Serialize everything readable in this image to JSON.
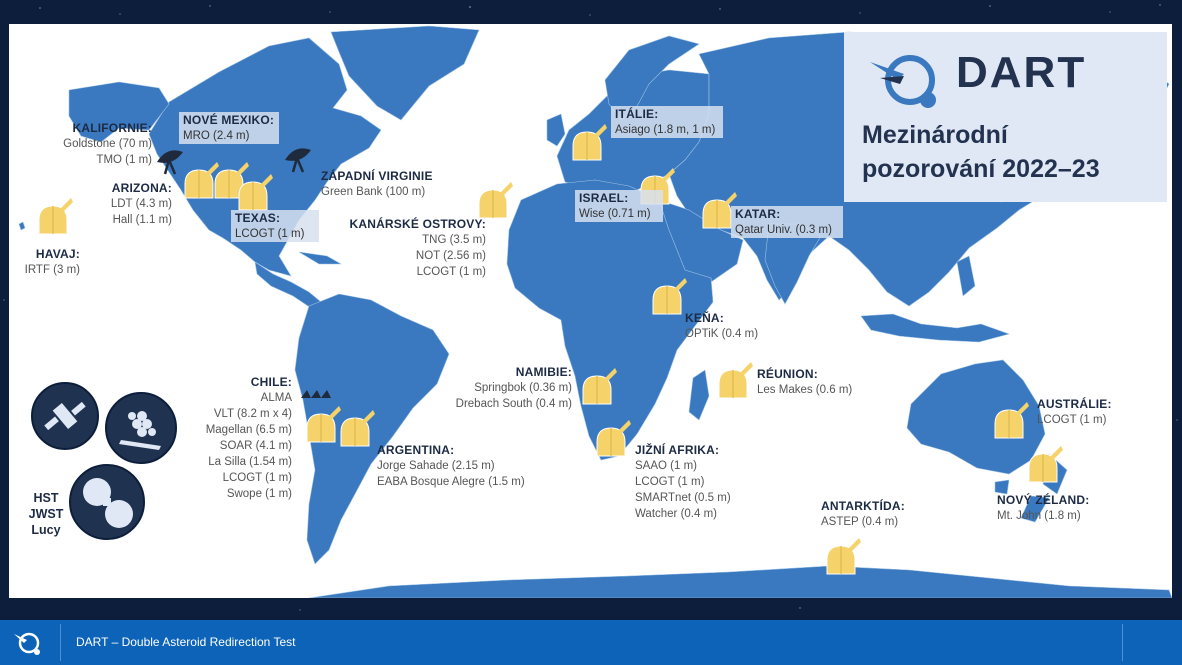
{
  "brand": {
    "name": "DART",
    "title_line1": "Mezinárodní",
    "title_line2": "pozorování 2022–23"
  },
  "colors": {
    "land": "#3a79bf",
    "background": "#0c1e3c",
    "footer": "#0c63b8",
    "observatory_icon": "#f5d36a",
    "brand_box": "#dfe8f4"
  },
  "regions": {
    "kalifornie": {
      "heading": "KALIFORNIE:",
      "lines": [
        "Goldstone (70 m)",
        "TMO (1 m)"
      ]
    },
    "arizona": {
      "heading": "ARIZONA:",
      "lines": [
        "LDT (4.3 m)",
        "Hall (1.1 m)"
      ]
    },
    "havaj": {
      "heading": "HAVAJ:",
      "lines": [
        "IRTF (3 m)"
      ]
    },
    "nove_mexiko": {
      "heading": "NOVÉ MEXIKO:",
      "lines": [
        "MRO (2.4 m)"
      ]
    },
    "texas": {
      "heading": "TEXAS:",
      "lines": [
        "LCOGT (1 m)"
      ]
    },
    "zapadni_virginie": {
      "heading": "ZÁPADNÍ VIRGINIE",
      "lines": [
        "Green Bank (100 m)"
      ]
    },
    "kanarske": {
      "heading": "KANÁRSKÉ OSTROVY:",
      "lines": [
        "TNG (3.5 m)",
        "NOT (2.56 m)",
        "LCOGT (1 m)"
      ]
    },
    "italie": {
      "heading": "ITÁLIE:",
      "lines": [
        "Asiago (1.8 m, 1 m)"
      ]
    },
    "izrael": {
      "heading": "ISRAEL:",
      "lines": [
        "Wise (0.71 m)"
      ]
    },
    "katar": {
      "heading": "KATAR:",
      "lines": [
        "Qatar Univ. (0.3 m)"
      ]
    },
    "kena": {
      "heading": "KEŇA:",
      "lines": [
        "OPTiK (0.4 m)"
      ]
    },
    "reunion": {
      "heading": "RÉUNION:",
      "lines": [
        "Les Makes (0.6 m)"
      ]
    },
    "namibie": {
      "heading": "NAMIBIE:",
      "lines": [
        "Springbok (0.36 m)",
        "Drebach South (0.4 m)"
      ]
    },
    "jizni_afrika": {
      "heading": "JIŽNÍ AFRIKA:",
      "lines": [
        "SAAO (1 m)",
        "LCOGT (1 m)",
        "SMARTnet (0.5 m)",
        "Watcher (0.4 m)"
      ]
    },
    "chile": {
      "heading": "CHILE:",
      "lines": [
        "ALMA",
        "VLT (8.2 m x 4)",
        "Magellan (6.5 m)",
        "SOAR (4.1 m)",
        "La Silla (1.54 m)",
        "LCOGT (1 m)",
        "Swope (1 m)"
      ]
    },
    "argentina": {
      "heading": "ARGENTINA:",
      "lines": [
        "Jorge Sahade (2.15 m)",
        "EABA Bosque Alegre (1.5 m)"
      ]
    },
    "australie": {
      "heading": "AUSTRÁLIE:",
      "lines": [
        "LCOGT (1 m)"
      ]
    },
    "novy_zeland": {
      "heading": "NOVÝ ZÉLAND:",
      "lines": [
        "Mt. John (1.8 m)"
      ]
    },
    "antarktida": {
      "heading": "ANTARKTÍDA:",
      "lines": [
        "ASTEP (0.4 m)"
      ]
    }
  },
  "space_telescopes": {
    "lines": [
      "HST",
      "JWST",
      "Lucy"
    ]
  },
  "footer": {
    "text": "DART – Double Asteroid Redirection Test"
  }
}
